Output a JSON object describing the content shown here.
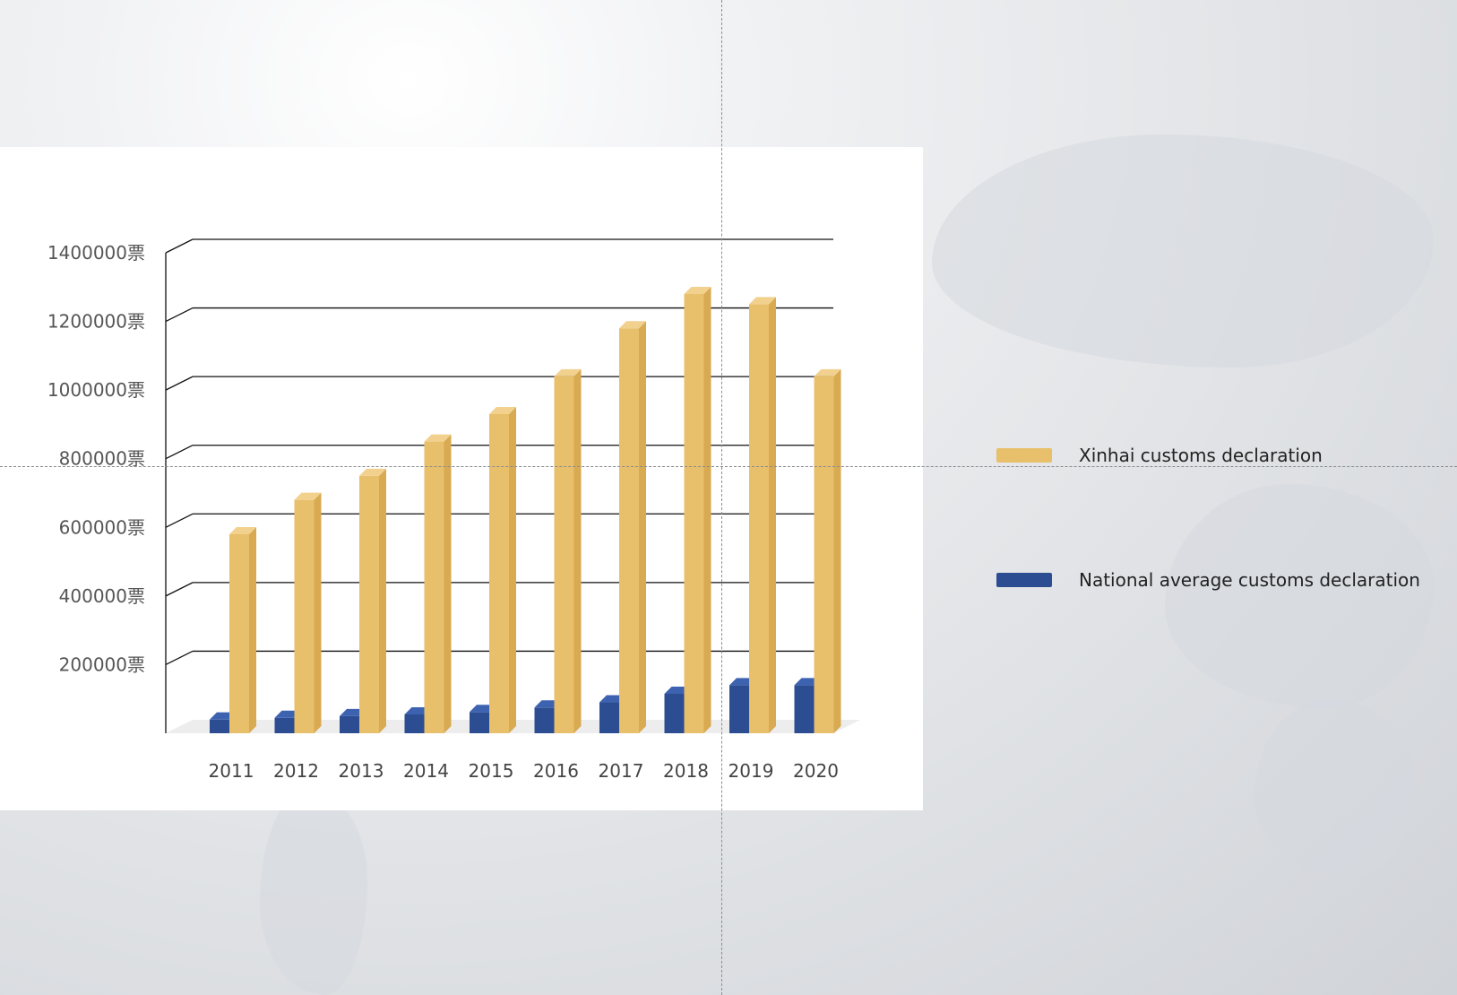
{
  "colors": {
    "xinhai": "#e8bf6a",
    "xinhai_side": "#d8aa52",
    "xinhai_top": "#f2d18e",
    "national": "#2c4d91",
    "national_side": "#1f3a75",
    "national_top": "#3d63b0"
  },
  "chart_data": {
    "type": "bar",
    "categories": [
      "2011",
      "2012",
      "2013",
      "2014",
      "2015",
      "2016",
      "2017",
      "2018",
      "2019",
      "2020"
    ],
    "series": [
      {
        "name": "Xinhai customs declaration",
        "values": [
          580000,
          680000,
          750000,
          850000,
          930000,
          1040000,
          1180000,
          1280000,
          1250000,
          1040000
        ]
      },
      {
        "name": "National average customs declaration",
        "values": [
          40000,
          45000,
          50000,
          55000,
          62000,
          75000,
          90000,
          115000,
          140000,
          140000
        ]
      }
    ],
    "yticks": [
      "1400000票",
      "1200000票",
      "1000000票",
      "800000票",
      "600000票",
      "400000票",
      "200000票"
    ],
    "ytick_values": [
      1400000,
      1200000,
      1000000,
      800000,
      600000,
      400000,
      200000
    ],
    "ylim": [
      0,
      1400000
    ],
    "grid": true,
    "legend_position": "right",
    "style": "3d"
  }
}
